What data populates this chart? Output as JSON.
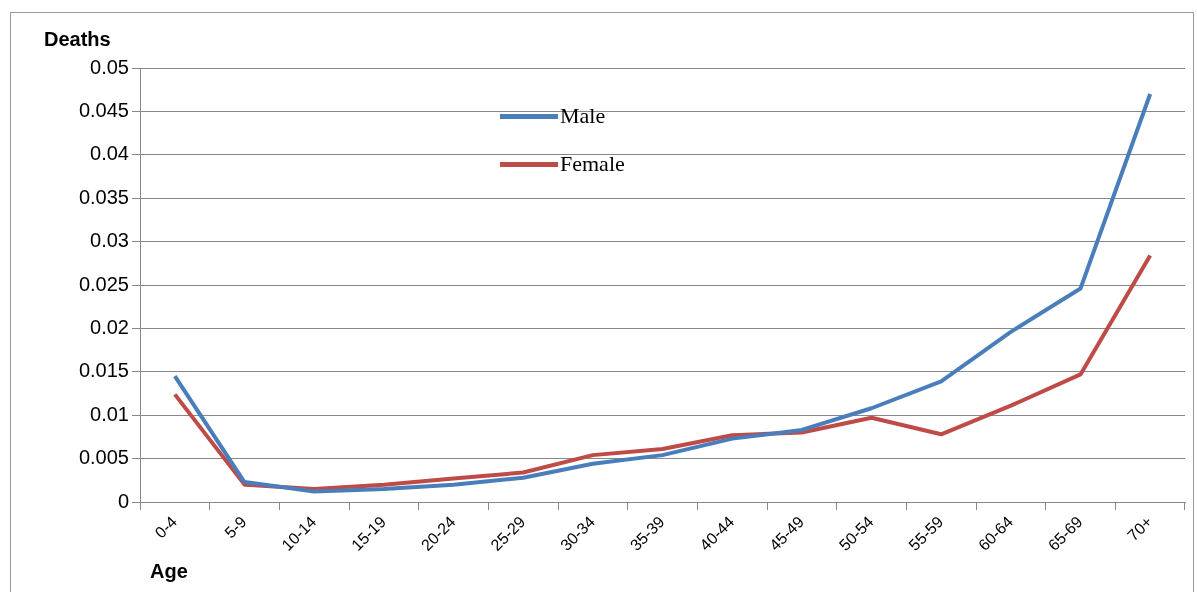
{
  "chart_data": {
    "type": "line",
    "xlabel": "Age",
    "ylabel": "Deaths",
    "categories": [
      "0-4",
      "5-9",
      "10-14",
      "15-19",
      "20-24",
      "25-29",
      "30-34",
      "35-39",
      "40-44",
      "45-49",
      "50-54",
      "55-59",
      "60-64",
      "65-69",
      "70+"
    ],
    "series": [
      {
        "name": "Male",
        "color": "#4a7ebb",
        "values": [
          0.0145,
          0.0023,
          0.0012,
          0.0015,
          0.002,
          0.0028,
          0.0044,
          0.0054,
          0.0073,
          0.0083,
          0.0108,
          0.0139,
          0.0196,
          0.0246,
          0.047
        ]
      },
      {
        "name": "Female",
        "color": "#be4b48",
        "values": [
          0.0124,
          0.002,
          0.0015,
          0.002,
          0.0027,
          0.0034,
          0.0054,
          0.0061,
          0.0077,
          0.008,
          0.0097,
          0.0078,
          0.0111,
          0.0147,
          0.0284
        ]
      }
    ],
    "ylim": [
      0,
      0.05
    ],
    "yticks": [
      0,
      0.005,
      0.01,
      0.015,
      0.02,
      0.025,
      0.03,
      0.035,
      0.04,
      0.045,
      0.05
    ],
    "grid": "y",
    "legend": "top",
    "marker": "none",
    "line_style": "solid"
  }
}
